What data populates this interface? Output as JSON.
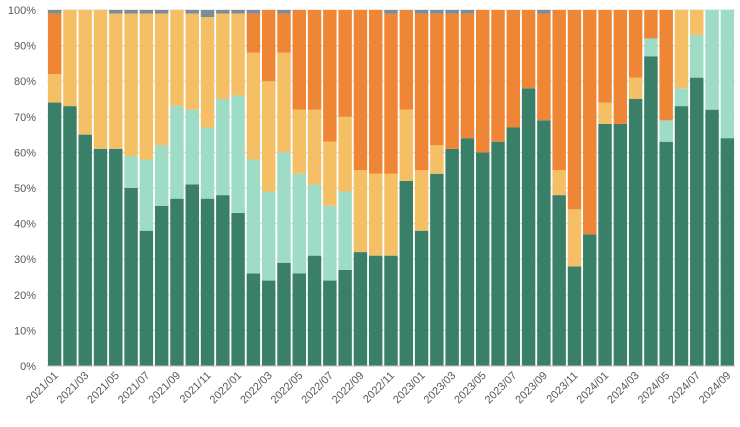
{
  "chart_data": {
    "type": "bar",
    "stacked": true,
    "percent_stacked": true,
    "ylim": [
      0,
      100
    ],
    "y_ticks": [
      "0%",
      "10%",
      "20%",
      "30%",
      "40%",
      "50%",
      "60%",
      "70%",
      "80%",
      "90%",
      "100%"
    ],
    "grid": true,
    "categories": [
      "2021/01",
      "2021/02",
      "2021/03",
      "2021/04",
      "2021/05",
      "2021/06",
      "2021/07",
      "2021/08",
      "2021/09",
      "2021/10",
      "2021/11",
      "2021/12",
      "2022/01",
      "2022/02",
      "2022/03",
      "2022/04",
      "2022/05",
      "2022/06",
      "2022/07",
      "2022/08",
      "2022/09",
      "2022/10",
      "2022/11",
      "2022/12",
      "2023/01",
      "2023/02",
      "2023/03",
      "2023/04",
      "2023/05",
      "2023/06",
      "2023/07",
      "2023/08",
      "2023/09",
      "2023/10",
      "2023/11",
      "2023/12",
      "2024/01",
      "2024/02",
      "2024/03",
      "2024/04",
      "2024/05",
      "2024/06",
      "2024/07",
      "2024/08",
      "2024/09"
    ],
    "x_tick_labels": [
      "2021/01",
      "2021/03",
      "2021/05",
      "2021/07",
      "2021/09",
      "2021/11",
      "2022/01",
      "2022/03",
      "2022/05",
      "2022/07",
      "2022/09",
      "2022/11",
      "2023/01",
      "2023/03",
      "2023/05",
      "2023/07",
      "2023/09",
      "2023/11",
      "2024/01",
      "2024/03",
      "2024/05",
      "2024/07",
      "2024/09"
    ],
    "series": [
      {
        "color": "#3a7f68",
        "values": [
          74,
          73,
          65,
          61,
          61,
          50,
          38,
          45,
          47,
          51,
          47,
          48,
          43,
          26,
          24,
          29,
          26,
          31,
          24,
          27,
          32,
          31,
          31,
          52,
          38,
          54,
          61,
          64,
          60,
          63,
          67,
          78,
          69,
          48,
          28,
          37,
          68,
          68,
          75,
          87,
          63,
          73,
          81,
          72,
          64
        ]
      },
      {
        "color": "#9fdcc6",
        "values": [
          0,
          0,
          0,
          0,
          0,
          9,
          20,
          17,
          26,
          21,
          20,
          27,
          33,
          32,
          25,
          31,
          28,
          20,
          21,
          22,
          0,
          0,
          0,
          0,
          0,
          0,
          0,
          0,
          0,
          0,
          0,
          0,
          0,
          0,
          0,
          0,
          0,
          0,
          0,
          5,
          6,
          5,
          12,
          28,
          36
        ]
      },
      {
        "color": "#f5bf65",
        "values": [
          8,
          27,
          35,
          39,
          38,
          40,
          41,
          37,
          27,
          27,
          31,
          24,
          23,
          30,
          31,
          28,
          18,
          21,
          18,
          21,
          23,
          23,
          23,
          20,
          17,
          8,
          0,
          0,
          0,
          0,
          0,
          0,
          0,
          7,
          16,
          0,
          6,
          0,
          6,
          0,
          0,
          22,
          7,
          0,
          0
        ]
      },
      {
        "color": "#ef8636",
        "values": [
          17,
          0,
          0,
          0,
          0,
          0,
          0,
          0,
          0,
          0,
          0,
          0,
          0,
          11,
          20,
          11,
          28,
          28,
          37,
          30,
          45,
          46,
          45,
          28,
          44,
          37,
          38,
          35,
          40,
          37,
          33,
          22,
          30,
          45,
          56,
          63,
          26,
          32,
          19,
          8,
          31,
          0,
          0,
          0,
          0
        ]
      },
      {
        "color": "#7f8c93",
        "values": [
          1,
          0,
          0,
          0,
          1,
          1,
          1,
          1,
          0,
          1,
          2,
          1,
          1,
          1,
          0,
          1,
          0,
          0,
          0,
          0,
          0,
          0,
          1,
          0,
          1,
          1,
          1,
          1,
          0,
          0,
          0,
          0,
          1,
          0,
          0,
          0,
          0,
          0,
          0,
          0,
          0,
          0,
          0,
          0,
          0
        ]
      }
    ]
  }
}
